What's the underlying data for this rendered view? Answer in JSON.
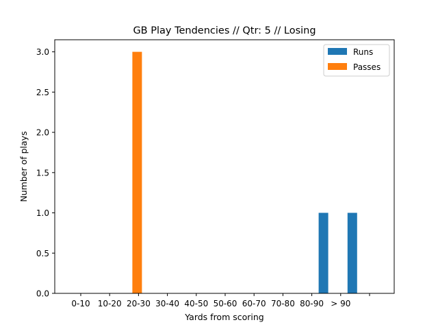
{
  "chart_data": {
    "type": "bar",
    "title": "GB Play Tendencies // Qtr: 5 // Losing",
    "xlabel": "Yards from scoring",
    "ylabel": "Number of plays",
    "categories": [
      "0-10",
      "10-20",
      "20-30",
      "30-40",
      "40-50",
      "50-60",
      "60-70",
      "70-80",
      "80-90",
      "> 90",
      ""
    ],
    "ylim": [
      0,
      3.15
    ],
    "yticks": [
      "0.0",
      "0.5",
      "1.0",
      "1.5",
      "2.0",
      "2.5",
      "3.0"
    ],
    "grid": false,
    "legend_position": "top-right",
    "series": [
      {
        "name": "Runs",
        "color": "#1f77b4",
        "values": [
          0,
          0,
          0,
          0,
          0,
          0,
          0,
          0,
          1,
          1,
          0
        ]
      },
      {
        "name": "Passes",
        "color": "#ff7f0e",
        "values": [
          0,
          0,
          3,
          0,
          0,
          0,
          0,
          0,
          0,
          0,
          0
        ]
      }
    ]
  }
}
